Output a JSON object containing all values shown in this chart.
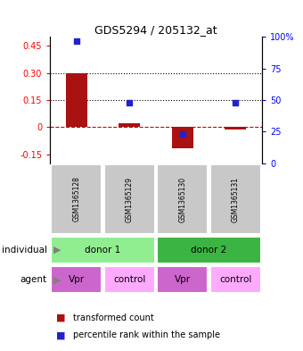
{
  "title": "GDS5294 / 205132_at",
  "samples": [
    "GSM1365128",
    "GSM1365129",
    "GSM1365130",
    "GSM1365131"
  ],
  "red_values": [
    0.3,
    0.02,
    -0.115,
    -0.015
  ],
  "blue_percentiles": [
    97,
    48,
    23,
    48
  ],
  "ylim_left": [
    -0.2,
    0.5
  ],
  "ylim_right": [
    0,
    100
  ],
  "yticks_left": [
    -0.15,
    0.0,
    0.15,
    0.3,
    0.45
  ],
  "yticks_right": [
    0,
    25,
    50,
    75,
    100
  ],
  "ytick_labels_left": [
    "-0.15",
    "0",
    "0.15",
    "0.30",
    "0.45"
  ],
  "ytick_labels_right": [
    "0",
    "25",
    "50",
    "75",
    "100%"
  ],
  "hlines_dotted": [
    0.15,
    0.3
  ],
  "hline_dashed": 0.0,
  "individual_labels": [
    "donor 1",
    "donor 2"
  ],
  "agent_labels": [
    "Vpr",
    "control",
    "Vpr",
    "control"
  ],
  "donor1_color": "#90EE90",
  "donor2_color": "#3CB443",
  "agent_vpr_color": "#CC66CC",
  "agent_ctrl_color": "#FFAAFF",
  "sample_bg_color": "#C8C8C8",
  "red_bar_color": "#AA1111",
  "blue_dot_color": "#2222CC",
  "bar_width": 0.4
}
